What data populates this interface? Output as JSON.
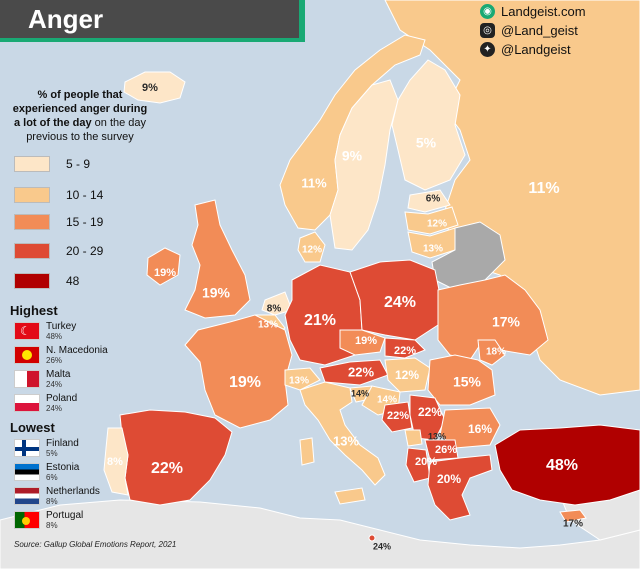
{
  "title": "Anger",
  "branding": {
    "website": "Landgeist.com",
    "instagram": "@Land_geist",
    "twitter": "@Landgeist"
  },
  "legend": {
    "heading_bold": "% of people that experienced anger during a lot of the day",
    "heading_rest": "on the day previous to the survey",
    "bins": [
      {
        "label": "5  -  9",
        "color": "#fde6c8"
      },
      {
        "label": "10  -  14",
        "color": "#f9c98c"
      },
      {
        "label": "15  -  19",
        "color": "#f28c57"
      },
      {
        "label": "20  -  29",
        "color": "#de4b34"
      },
      {
        "label": "48",
        "color": "#b00000"
      }
    ]
  },
  "highest": {
    "title": "Highest",
    "items": [
      {
        "name": "Turkey",
        "value": "48%",
        "flag": "turkey-flag"
      },
      {
        "name": "N. Macedonia",
        "value": "26%",
        "flag": "macedonia-flag"
      },
      {
        "name": "Malta",
        "value": "24%",
        "flag": "malta-flag"
      },
      {
        "name": "Poland",
        "value": "24%",
        "flag": "poland-flag"
      }
    ]
  },
  "lowest": {
    "title": "Lowest",
    "items": [
      {
        "name": "Finland",
        "value": "5%",
        "flag": "finland-flag"
      },
      {
        "name": "Estonia",
        "value": "6%",
        "flag": "estonia-flag"
      },
      {
        "name": "Netherlands",
        "value": "8%",
        "flag": "netherlands-flag"
      },
      {
        "name": "Portugal",
        "value": "8%",
        "flag": "portugal-flag"
      }
    ]
  },
  "source": "Source: Gallup Global Emotions Report, 2021",
  "map_labels": [
    {
      "id": "iceland",
      "text": "9%"
    },
    {
      "id": "norway",
      "text": "11%"
    },
    {
      "id": "sweden",
      "text": "9%"
    },
    {
      "id": "finland",
      "text": "5%"
    },
    {
      "id": "russia",
      "text": "11%"
    },
    {
      "id": "estonia",
      "text": "6%"
    },
    {
      "id": "latvia",
      "text": "12%"
    },
    {
      "id": "lithuania",
      "text": "13%"
    },
    {
      "id": "denmark",
      "text": "12%"
    },
    {
      "id": "ireland",
      "text": "19%"
    },
    {
      "id": "uk",
      "text": "19%"
    },
    {
      "id": "netherlands",
      "text": "8%"
    },
    {
      "id": "belgium",
      "text": "13%"
    },
    {
      "id": "germany",
      "text": "21%"
    },
    {
      "id": "poland",
      "text": "24%"
    },
    {
      "id": "ukraine",
      "text": "17%"
    },
    {
      "id": "czechia",
      "text": "19%"
    },
    {
      "id": "slovakia",
      "text": "22%"
    },
    {
      "id": "moldova",
      "text": "18%"
    },
    {
      "id": "france",
      "text": "19%"
    },
    {
      "id": "switzerland",
      "text": "13%"
    },
    {
      "id": "austria",
      "text": "22%"
    },
    {
      "id": "hungary",
      "text": "12%"
    },
    {
      "id": "romania",
      "text": "15%"
    },
    {
      "id": "slovenia",
      "text": "14%"
    },
    {
      "id": "croatia",
      "text": "14%"
    },
    {
      "id": "bosnia",
      "text": "22%"
    },
    {
      "id": "serbia",
      "text": "22%"
    },
    {
      "id": "bulgaria",
      "text": "16%"
    },
    {
      "id": "montenegro",
      "text": "13%"
    },
    {
      "id": "n_macedonia",
      "text": "26%"
    },
    {
      "id": "albania",
      "text": "20%"
    },
    {
      "id": "greece",
      "text": "20%"
    },
    {
      "id": "italy",
      "text": "13%"
    },
    {
      "id": "spain",
      "text": "22%"
    },
    {
      "id": "portugal",
      "text": "8%"
    },
    {
      "id": "turkey",
      "text": "48%"
    },
    {
      "id": "cyprus",
      "text": "17%"
    },
    {
      "id": "malta",
      "text": "24%"
    }
  ]
}
